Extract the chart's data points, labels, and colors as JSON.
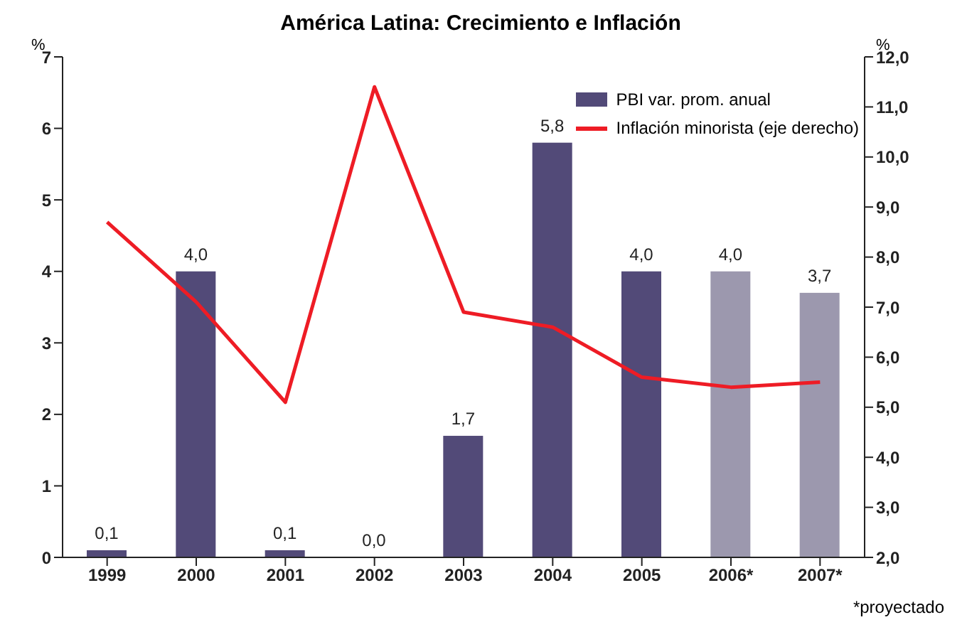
{
  "chart_data": {
    "type": "bar",
    "title": "América Latina: Crecimiento e Inflación",
    "ylabel": "%",
    "y2label": "%",
    "categories": [
      "1999",
      "2000",
      "2001",
      "2002",
      "2003",
      "2004",
      "2005",
      "2006*",
      "2007*"
    ],
    "series": [
      {
        "name": "PBI var. prom. anual",
        "color": "#524a78",
        "colors": [
          "#524a78",
          "#524a78",
          "#524a78",
          "#524a78",
          "#524a78",
          "#524a78",
          "#524a78",
          "#9c98ae",
          "#9c98ae"
        ],
        "values": [
          0.1,
          4.0,
          0.1,
          0.0,
          1.7,
          5.8,
          4.0,
          4.0,
          3.7
        ],
        "value_labels": [
          "0,1",
          "4,0",
          "0,1",
          "0,0",
          "1,7",
          "5,8",
          "4,0",
          "4,0",
          "3,7"
        ]
      },
      {
        "name": "Inflación minorista (eje derecho)",
        "type": "line",
        "axis": "y2",
        "color": "#ee1c25",
        "values": [
          8.7,
          7.1,
          5.1,
          11.4,
          6.9,
          6.6,
          5.6,
          5.4,
          5.5
        ]
      }
    ],
    "ylim": [
      0,
      7
    ],
    "yticks": [
      0,
      1,
      2,
      3,
      4,
      5,
      6,
      7
    ],
    "y2lim": [
      2,
      12
    ],
    "y2ticks": [
      {
        "value": 2,
        "label": "2,0"
      },
      {
        "value": 3,
        "label": "3,0"
      },
      {
        "value": 4,
        "label": "4,0"
      },
      {
        "value": 5,
        "label": "5,0"
      },
      {
        "value": 6,
        "label": "6,0"
      },
      {
        "value": 7,
        "label": "7,0"
      },
      {
        "value": 8,
        "label": "8,0"
      },
      {
        "value": 9,
        "label": "9,0"
      },
      {
        "value": 10,
        "label": "10,0"
      },
      {
        "value": 11,
        "label": "11,0"
      },
      {
        "value": 12,
        "label": "12,0"
      }
    ],
    "legend": "top right",
    "marker": "none",
    "line_style": "solid",
    "annotations": [
      "*proyectado"
    ]
  }
}
